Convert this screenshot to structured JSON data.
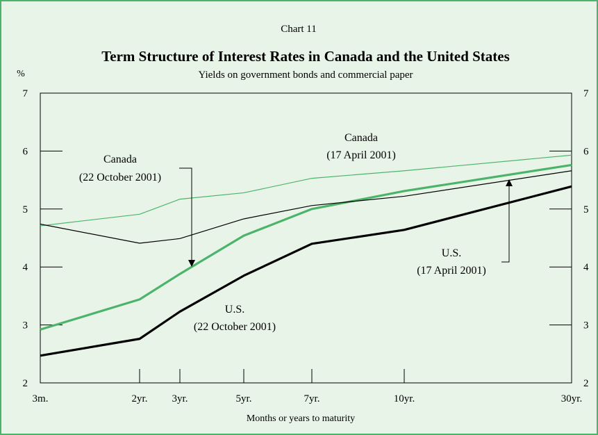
{
  "chart_data": {
    "type": "line",
    "chart_label": "Chart 11",
    "title": "Term Structure of Interest Rates in Canada and the United States",
    "subtitle": "Yields on government bonds and commercial paper",
    "y_unit": "%",
    "xlabel": "Months or years to maturity",
    "categories": [
      "3m.",
      "2yr.",
      "3yr.",
      "5yr.",
      "7yr.",
      "10yr.",
      "30yr."
    ],
    "x_positions_years": [
      0.25,
      2,
      3,
      5,
      7,
      10,
      30
    ],
    "ylim": [
      2,
      7
    ],
    "yticks": [
      "2",
      "3",
      "4",
      "5",
      "6",
      "7"
    ],
    "grid": false,
    "series": [
      {
        "name": "Canada (17 April 2001)",
        "color": "#4cb46a",
        "width": "thin",
        "values": [
          4.71,
          4.91,
          5.17,
          5.28,
          5.53,
          5.66,
          5.93
        ]
      },
      {
        "name": "Canada (22 October 2001)",
        "color": "#4cb46a",
        "width": "thick",
        "values": [
          2.92,
          3.44,
          3.88,
          4.54,
          5.0,
          5.31,
          5.76
        ]
      },
      {
        "name": "U.S. (17 April 2001)",
        "color": "#000000",
        "width": "thin",
        "values": [
          4.74,
          4.41,
          4.49,
          4.83,
          5.06,
          5.22,
          5.66
        ]
      },
      {
        "name": "U.S. (22 October 2001)",
        "color": "#000000",
        "width": "thick",
        "values": [
          2.47,
          2.76,
          3.23,
          3.85,
          4.4,
          4.64,
          5.39
        ]
      }
    ],
    "annotations": [
      {
        "lines": [
          "Canada",
          "(17 April 2001)"
        ]
      },
      {
        "lines": [
          "Canada",
          "(22 October 2001)"
        ]
      },
      {
        "lines": [
          "U.S.",
          "(17 April 2001)"
        ]
      },
      {
        "lines": [
          "U.S.",
          "(22 October 2001)"
        ]
      }
    ]
  }
}
